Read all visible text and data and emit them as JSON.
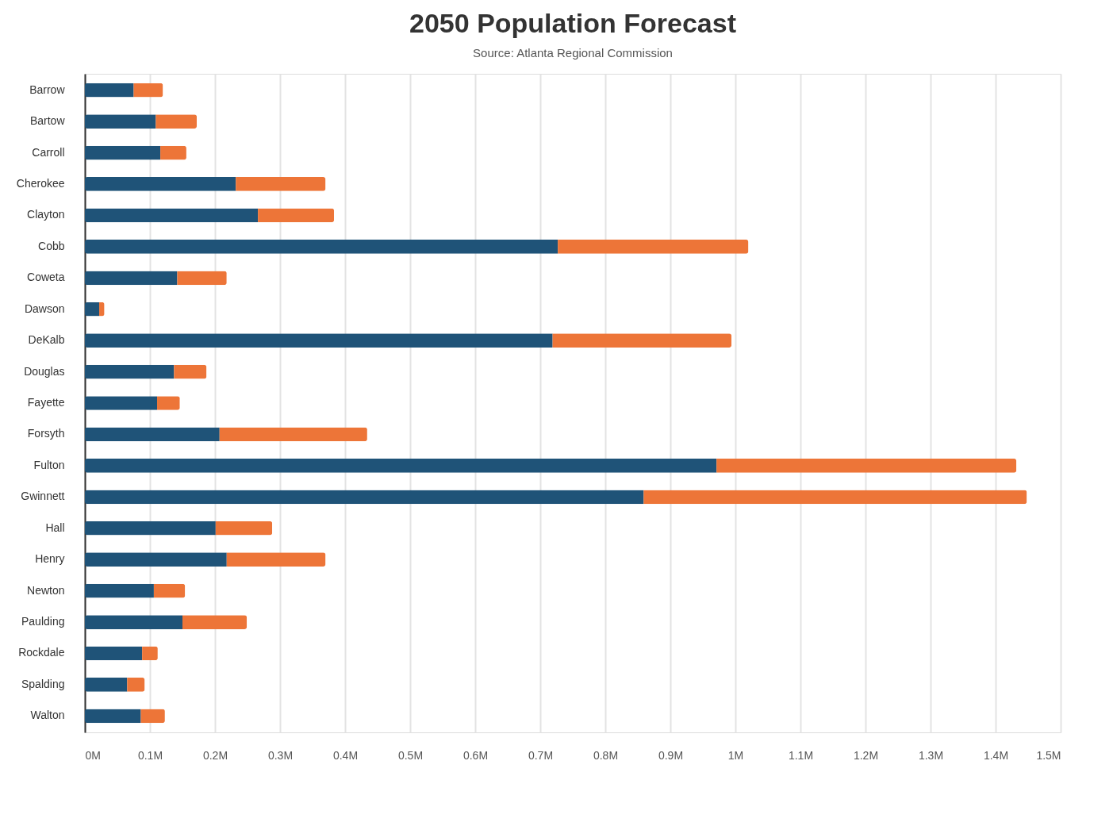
{
  "chart_data": {
    "type": "bar",
    "orientation": "horizontal",
    "stacked": true,
    "title": "2050 Population Forecast",
    "subtitle": "Source: Atlanta Regional Commission",
    "categories": [
      "Barrow",
      "Bartow",
      "Carroll",
      "Cherokee",
      "Clayton",
      "Cobb",
      "Coweta",
      "Dawson",
      "DeKalb",
      "Douglas",
      "Fayette",
      "Forsyth",
      "Fulton",
      "Gwinnett",
      "Hall",
      "Henry",
      "Newton",
      "Paulding",
      "Rockdale",
      "Spalding",
      "Walton"
    ],
    "series": [
      {
        "color": "#1f5378",
        "values": [
          0.075,
          0.109,
          0.116,
          0.232,
          0.266,
          0.727,
          0.142,
          0.022,
          0.719,
          0.137,
          0.111,
          0.207,
          0.971,
          0.859,
          0.201,
          0.218,
          0.106,
          0.15,
          0.088,
          0.065,
          0.086
        ]
      },
      {
        "color": "#ed7538",
        "values": [
          0.045,
          0.063,
          0.04,
          0.138,
          0.117,
          0.293,
          0.076,
          0.008,
          0.275,
          0.05,
          0.035,
          0.227,
          0.461,
          0.589,
          0.087,
          0.152,
          0.048,
          0.099,
          0.024,
          0.027,
          0.037
        ]
      }
    ],
    "xlim": [
      0,
      1.5
    ],
    "xticks": [
      {
        "value": 0,
        "label": "0M"
      },
      {
        "value": 0.1,
        "label": "0.1M"
      },
      {
        "value": 0.2,
        "label": "0.2M"
      },
      {
        "value": 0.3,
        "label": "0.3M"
      },
      {
        "value": 0.4,
        "label": "0.4M"
      },
      {
        "value": 0.5,
        "label": "0.5M"
      },
      {
        "value": 0.6,
        "label": "0.6M"
      },
      {
        "value": 0.7,
        "label": "0.7M"
      },
      {
        "value": 0.8,
        "label": "0.8M"
      },
      {
        "value": 0.9,
        "label": "0.9M"
      },
      {
        "value": 1,
        "label": "1M"
      },
      {
        "value": 1.1,
        "label": "1.1M"
      },
      {
        "value": 1.2,
        "label": "1.2M"
      },
      {
        "value": 1.3,
        "label": "1.3M"
      },
      {
        "value": 1.4,
        "label": "1.4M"
      },
      {
        "value": 1.5,
        "label": "1.5M"
      }
    ],
    "grid": "x",
    "legend": false
  }
}
